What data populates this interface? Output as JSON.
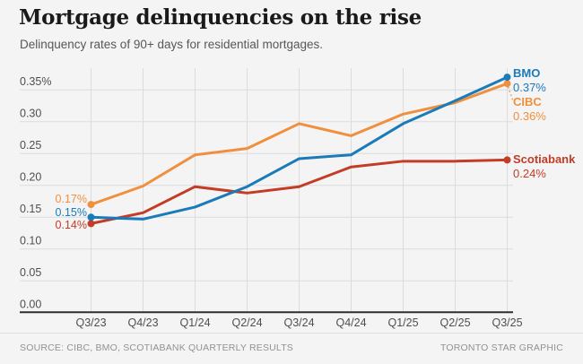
{
  "header": {
    "title": "Mortgage delinquencies on the rise",
    "subtitle": "Delinquency rates of 90+ days for residential mortgages."
  },
  "chart_data": {
    "type": "line",
    "title": "Mortgage delinquencies on the rise",
    "subtitle": "Delinquency rates of 90+ days for residential mortgages.",
    "categories": [
      "Q3/23",
      "Q4/23",
      "Q1/24",
      "Q2/24",
      "Q3/24",
      "Q4/24",
      "Q1/25",
      "Q2/25",
      "Q3/25"
    ],
    "y_ticks": [
      {
        "label": "0.35%",
        "value": 0.35
      },
      {
        "label": "0.30",
        "value": 0.3
      },
      {
        "label": "0.25",
        "value": 0.25
      },
      {
        "label": "0.20",
        "value": 0.2
      },
      {
        "label": "0.15",
        "value": 0.15
      },
      {
        "label": "0.10",
        "value": 0.1
      },
      {
        "label": "0.05",
        "value": 0.05
      },
      {
        "label": "0.00",
        "value": 0.0
      }
    ],
    "ylim": [
      0,
      0.37
    ],
    "grid": true,
    "legend_position": "end-of-line-labels",
    "series": [
      {
        "name": "BMO",
        "color": "#1b7ab8",
        "values": [
          0.15,
          0.147,
          0.166,
          0.198,
          0.242,
          0.248,
          0.297,
          0.333,
          0.37
        ],
        "start_label": "0.15%",
        "end_label": "0.37%"
      },
      {
        "name": "CIBC",
        "color": "#f08f3e",
        "values": [
          0.17,
          0.199,
          0.248,
          0.258,
          0.297,
          0.278,
          0.312,
          0.33,
          0.36
        ],
        "start_label": "0.17%",
        "end_label": "0.36%"
      },
      {
        "name": "Scotiabank",
        "color": "#c23c26",
        "values": [
          0.14,
          0.157,
          0.198,
          0.188,
          0.198,
          0.229,
          0.238,
          0.238,
          0.24
        ],
        "start_label": "0.14%",
        "end_label": "0.24%"
      }
    ]
  },
  "footer": {
    "source": "SOURCE: CIBC, BMO, SCOTIABANK QUARTERLY RESULTS",
    "credit": "TORONTO STAR GRAPHIC"
  },
  "colors": {
    "background": "#f4f4f4",
    "gridline": "#dcdcdc",
    "axis": "#2e2e2e",
    "tick_text": "#4d4f53",
    "bmo_blue": "#1b7ab8",
    "cibc_orange": "#f08f3e",
    "scotiabank_red": "#c23c26"
  }
}
